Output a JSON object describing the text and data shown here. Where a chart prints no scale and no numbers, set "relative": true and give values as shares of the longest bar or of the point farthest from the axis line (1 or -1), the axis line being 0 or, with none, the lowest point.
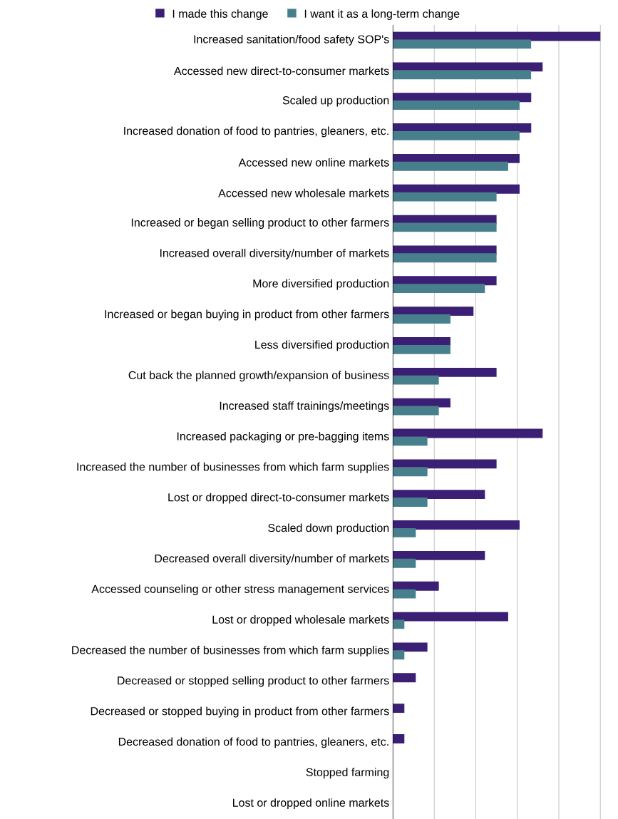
{
  "chart_data": {
    "type": "bar",
    "orientation": "horizontal",
    "relative": true,
    "grid": "x",
    "legend": "top",
    "categories": [
      "Increased sanitation/food safety SOP's",
      "Accessed new direct-to-consumer markets",
      "Scaled up production",
      "Increased donation of food to pantries, gleaners, etc.",
      "Accessed new online markets",
      "Accessed new wholesale markets",
      "Increased or began selling product to other farmers",
      "Increased overall diversity/number of markets",
      "More diversified production",
      "Increased or began buying in product from other farmers",
      "Less diversified production",
      "Cut back the planned growth/expansion of business",
      "Increased staff trainings/meetings",
      "Increased packaging or pre-bagging items",
      "Increased the number of businesses from which farm supplies",
      "Lost or dropped direct-to-consumer markets",
      "Scaled down production",
      "Decreased overall diversity/number of markets",
      "Accessed counseling or other stress management services",
      "Lost or dropped wholesale markets",
      "Decreased the number of businesses from which farm supplies",
      "Decreased or stopped selling product to other farmers",
      "Decreased or stopped buying in product from other farmers",
      "Decreased donation of food to pantries, gleaners, etc.",
      "Stopped farming",
      "Lost or dropped online markets"
    ],
    "series": [
      {
        "name": "I made this change",
        "color": "#3a1f75",
        "values": [
          1,
          0.722,
          0.667,
          0.667,
          0.611,
          0.611,
          0.5,
          0.5,
          0.5,
          0.389,
          0.278,
          0.5,
          0.278,
          0.722,
          0.5,
          0.444,
          0.611,
          0.444,
          0.222,
          0.556,
          0.167,
          0.111,
          0.056,
          0.056,
          0,
          0
        ]
      },
      {
        "name": "I want it as a long-term change",
        "color": "#47808c",
        "values": [
          0.667,
          0.667,
          0.611,
          0.611,
          0.556,
          0.5,
          0.5,
          0.5,
          0.444,
          0.278,
          0.278,
          0.222,
          0.222,
          0.167,
          0.167,
          0.167,
          0.111,
          0.111,
          0.111,
          0.056,
          0.056,
          0,
          0,
          0,
          0,
          0
        ]
      }
    ]
  }
}
